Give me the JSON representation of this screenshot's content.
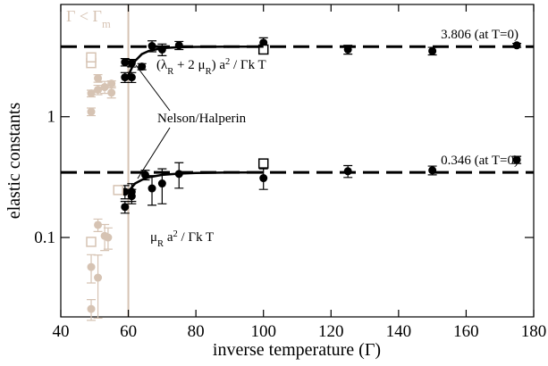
{
  "chart_data": {
    "type": "scatter",
    "x_label": "inverse temperature (Γ)",
    "y_label": "elastic constants",
    "xlim": [
      40,
      180
    ],
    "xticks": [
      40,
      60,
      80,
      100,
      120,
      140,
      160,
      180
    ],
    "ylim": [
      0.022,
      8.5
    ],
    "yticks": [
      0.1,
      1
    ],
    "log_y": true,
    "vline": {
      "value": 60,
      "color": "#d6c3b3"
    },
    "reference_lines": [
      {
        "value": 3.806,
        "label": "3.806 (at T=0)"
      },
      {
        "value": 0.346,
        "label": "0.346 (at T=0)"
      }
    ],
    "series": [
      {
        "marker": "circle",
        "color": "#000000",
        "x": [
          59,
          59,
          61,
          61,
          64,
          67,
          70,
          75,
          100,
          125,
          150,
          175
        ],
        "values": [
          2.83,
          2.12,
          2.12,
          2.78,
          2.6,
          3.85,
          3.6,
          3.9,
          4.1,
          3.6,
          3.5,
          3.9
        ],
        "errors": [
          0.2,
          0.2,
          0.2,
          0.2,
          0.15,
          0.4,
          0.4,
          0.3,
          0.4,
          0.3,
          0.25,
          0.15
        ]
      },
      {
        "marker": "square",
        "color": "#000000",
        "x": [
          100
        ],
        "values": [
          3.6
        ]
      },
      {
        "marker": "circle",
        "color": "#000000",
        "x": [
          59,
          59,
          61,
          61,
          65,
          67,
          70,
          75,
          100,
          125,
          150,
          175
        ],
        "values": [
          0.179,
          0.239,
          0.239,
          0.22,
          0.33,
          0.255,
          0.28,
          0.336,
          0.31,
          0.354,
          0.36,
          0.44
        ],
        "errors": [
          0.02,
          0.03,
          0.04,
          0.03,
          0.03,
          0.07,
          0.09,
          0.08,
          0.06,
          0.04,
          0.03,
          0.03
        ]
      },
      {
        "marker": "square",
        "color": "#000000",
        "x": [
          100
        ],
        "values": [
          0.41
        ]
      },
      {
        "marker": "circle",
        "color": "#d6c3b3",
        "x": [
          49,
          49,
          51,
          51,
          53,
          55,
          55
        ],
        "values": [
          1.1,
          1.56,
          2.08,
          1.67,
          1.76,
          1.58,
          1.88
        ],
        "errors": [
          0.08,
          0.1,
          0.15,
          0.15,
          0.2,
          0.15,
          0.1
        ]
      },
      {
        "marker": "square",
        "color": "#d6c3b3",
        "x": [
          49,
          49
        ],
        "values": [
          2.78,
          3.1
        ]
      },
      {
        "marker": "circle",
        "color": "#d6c3b3",
        "x": [
          49,
          49,
          51,
          51,
          53,
          54
        ],
        "values": [
          0.057,
          0.0256,
          0.0465,
          0.127,
          0.103,
          0.1
        ],
        "errors": [
          0.015,
          0.005,
          0.025,
          0.015,
          0.025,
          0.02
        ]
      },
      {
        "marker": "square",
        "color": "#d6c3b3",
        "x": [
          49,
          57
        ],
        "values": [
          0.092,
          0.247
        ]
      },
      {
        "marker": "line",
        "color": "#000000",
        "x": [
          60,
          62,
          64,
          66,
          70,
          75,
          80,
          90,
          100
        ],
        "values": [
          2.2,
          2.9,
          3.3,
          3.5,
          3.7,
          3.76,
          3.79,
          3.8,
          3.806
        ]
      },
      {
        "marker": "line",
        "color": "#000000",
        "x": [
          60,
          62,
          64,
          66,
          70,
          75,
          80,
          90,
          100
        ],
        "values": [
          0.24,
          0.28,
          0.3,
          0.315,
          0.33,
          0.338,
          0.342,
          0.345,
          0.346
        ]
      }
    ],
    "annotations": [
      {
        "color": "#d6c3b3",
        "parts": [
          {
            "text": "Γ < Γ"
          },
          {
            "text": "m",
            "shift": "sub"
          }
        ]
      },
      {
        "color": "#000000",
        "parts": [
          {
            "text": "(λ"
          },
          {
            "text": "R",
            "shift": "sub"
          },
          {
            "text": " + 2 μ"
          },
          {
            "text": "R",
            "shift": "sub"
          },
          {
            "text": ") a"
          },
          {
            "text": "2",
            "shift": "super"
          },
          {
            "text": " / Γk T"
          }
        ]
      },
      {
        "color": "#000000",
        "parts": [
          {
            "text": "μ"
          },
          {
            "text": "R",
            "shift": "sub"
          },
          {
            "text": " a"
          },
          {
            "text": "2",
            "shift": "super"
          },
          {
            "text": " / Γk T"
          }
        ]
      },
      {
        "color": "#000000",
        "parts": [
          {
            "text": "Nelson/Halperin"
          }
        ]
      }
    ]
  }
}
